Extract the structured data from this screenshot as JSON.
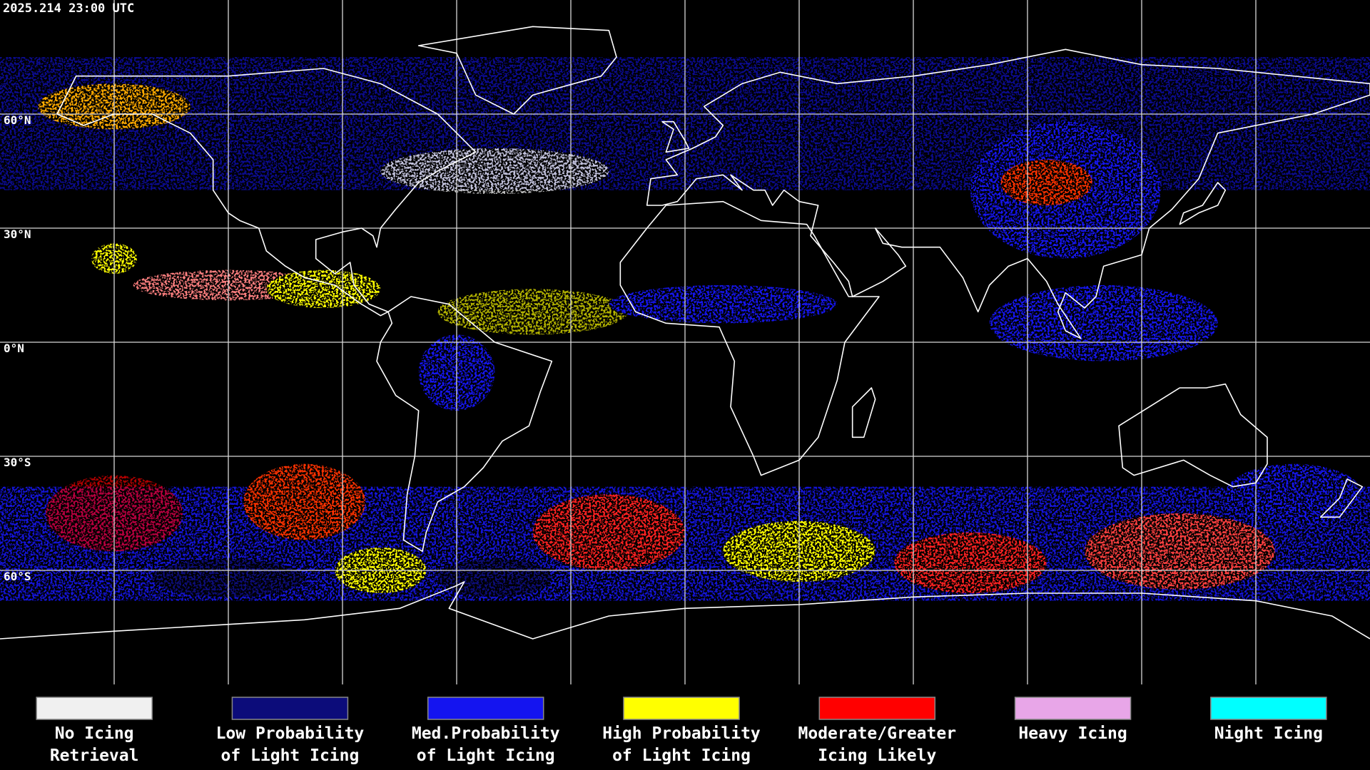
{
  "header": {
    "timestamp": "2025.214 23:00 UTC"
  },
  "map": {
    "lat_labels": [
      "60°N",
      "30°N",
      "0°N",
      "30°S",
      "60°S"
    ]
  },
  "legend": {
    "items": [
      {
        "label": [
          "No Icing",
          "Retrieval"
        ],
        "color": "#f0f0f0"
      },
      {
        "label": [
          "Low Probability",
          "of Light Icing"
        ],
        "color": "#0c0c7a"
      },
      {
        "label": [
          "Med.Probability",
          "of Light Icing"
        ],
        "color": "#1414f0"
      },
      {
        "label": [
          "High Probability",
          "of Light Icing"
        ],
        "color": "#ffff00"
      },
      {
        "label": [
          "Moderate/Greater",
          "Icing Likely"
        ],
        "color": "#ff0000"
      },
      {
        "label": [
          "Heavy Icing"
        ],
        "color": "#e8a6e8"
      },
      {
        "label": [
          "Night Icing"
        ],
        "color": "#00ffff"
      }
    ]
  }
}
